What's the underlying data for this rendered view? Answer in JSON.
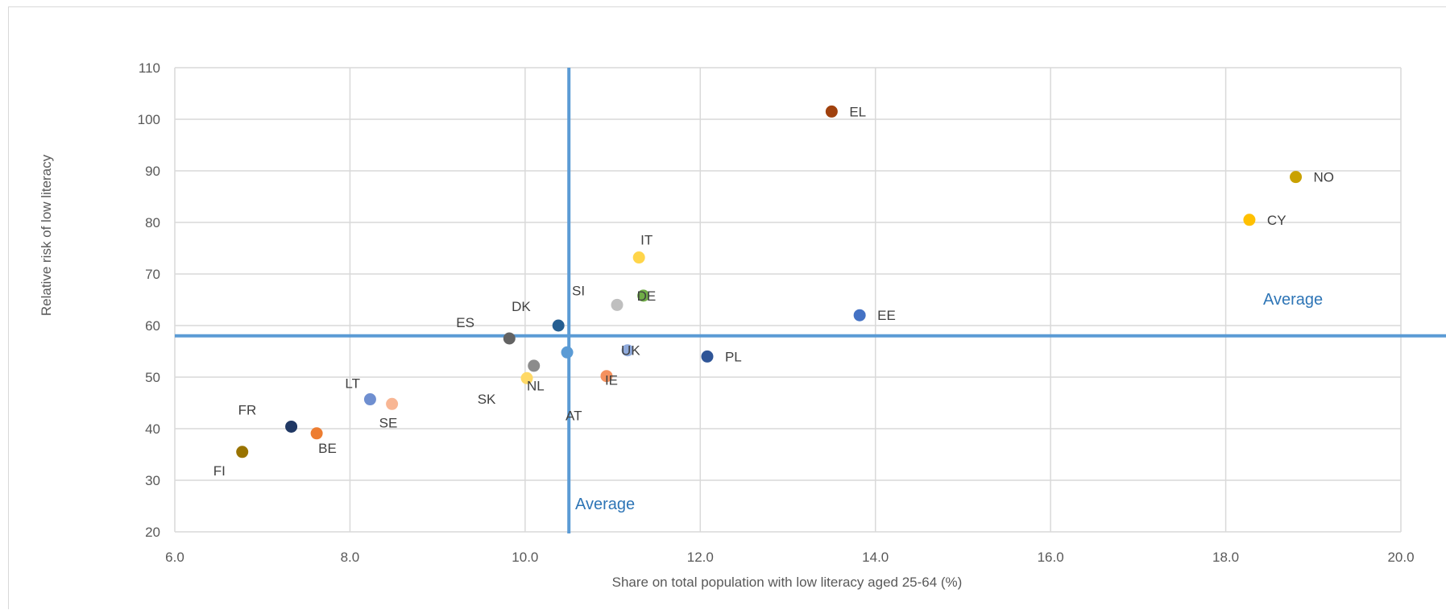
{
  "chart_data": {
    "type": "scatter",
    "title": "",
    "xlabel": "Share on total population with low literacy aged 25-64 (%)",
    "ylabel": "Relative risk of low literacy",
    "xlim": [
      6.0,
      20.0
    ],
    "ylim": [
      20,
      110
    ],
    "x_ticks": [
      "6.0",
      "8.0",
      "10.0",
      "12.0",
      "14.0",
      "16.0",
      "18.0",
      "20.0"
    ],
    "y_ticks": [
      "20",
      "30",
      "40",
      "50",
      "60",
      "70",
      "80",
      "90",
      "100",
      "110"
    ],
    "grid": true,
    "averages": {
      "x": 10.5,
      "y": 58,
      "x_label": "Average",
      "y_label": "Average",
      "color": "#5b9bd5",
      "label_color": "#2e75b6"
    },
    "points": [
      {
        "label": "EL",
        "x": 13.5,
        "y": 101.5,
        "color": "#a0410d"
      },
      {
        "label": "NO",
        "x": 18.8,
        "y": 88.8,
        "color": "#c9a100"
      },
      {
        "label": "CY",
        "x": 18.27,
        "y": 80.5,
        "color": "#ffc000"
      },
      {
        "label": "IT",
        "x": 11.3,
        "y": 73.2,
        "color": "#ffd54a"
      },
      {
        "label": "DE",
        "x": 11.35,
        "y": 65.8,
        "color": "#70ad47"
      },
      {
        "label": "SI",
        "x": 11.05,
        "y": 64.0,
        "color": "#bfbfbf"
      },
      {
        "label": "EE",
        "x": 13.82,
        "y": 62.0,
        "color": "#4472c4"
      },
      {
        "label": "DK",
        "x": 10.38,
        "y": 60.0,
        "color": "#255e91"
      },
      {
        "label": "ES",
        "x": 9.82,
        "y": 57.5,
        "color": "#636363"
      },
      {
        "label": "UK",
        "x": 11.17,
        "y": 55.2,
        "color": "#8faadc"
      },
      {
        "label": "AT",
        "x": 10.48,
        "y": 54.8,
        "color": "#5b9bd5"
      },
      {
        "label": "PL",
        "x": 12.08,
        "y": 54.0,
        "color": "#2f5597"
      },
      {
        "label": "SK",
        "x": 10.1,
        "y": 52.2,
        "color": "#8c8c8c"
      },
      {
        "label": "IE",
        "x": 10.93,
        "y": 50.2,
        "color": "#f4915e"
      },
      {
        "label": "NL",
        "x": 10.02,
        "y": 49.8,
        "color": "#ffd966"
      },
      {
        "label": "LT",
        "x": 8.23,
        "y": 45.7,
        "color": "#6f8fd0"
      },
      {
        "label": "SE",
        "x": 8.48,
        "y": 44.8,
        "color": "#f8b694"
      },
      {
        "label": "FR",
        "x": 7.33,
        "y": 40.4,
        "color": "#203864"
      },
      {
        "label": "BE",
        "x": 7.62,
        "y": 39.1,
        "color": "#ed7d31"
      },
      {
        "label": "FI",
        "x": 6.77,
        "y": 35.5,
        "color": "#997300"
      }
    ]
  }
}
